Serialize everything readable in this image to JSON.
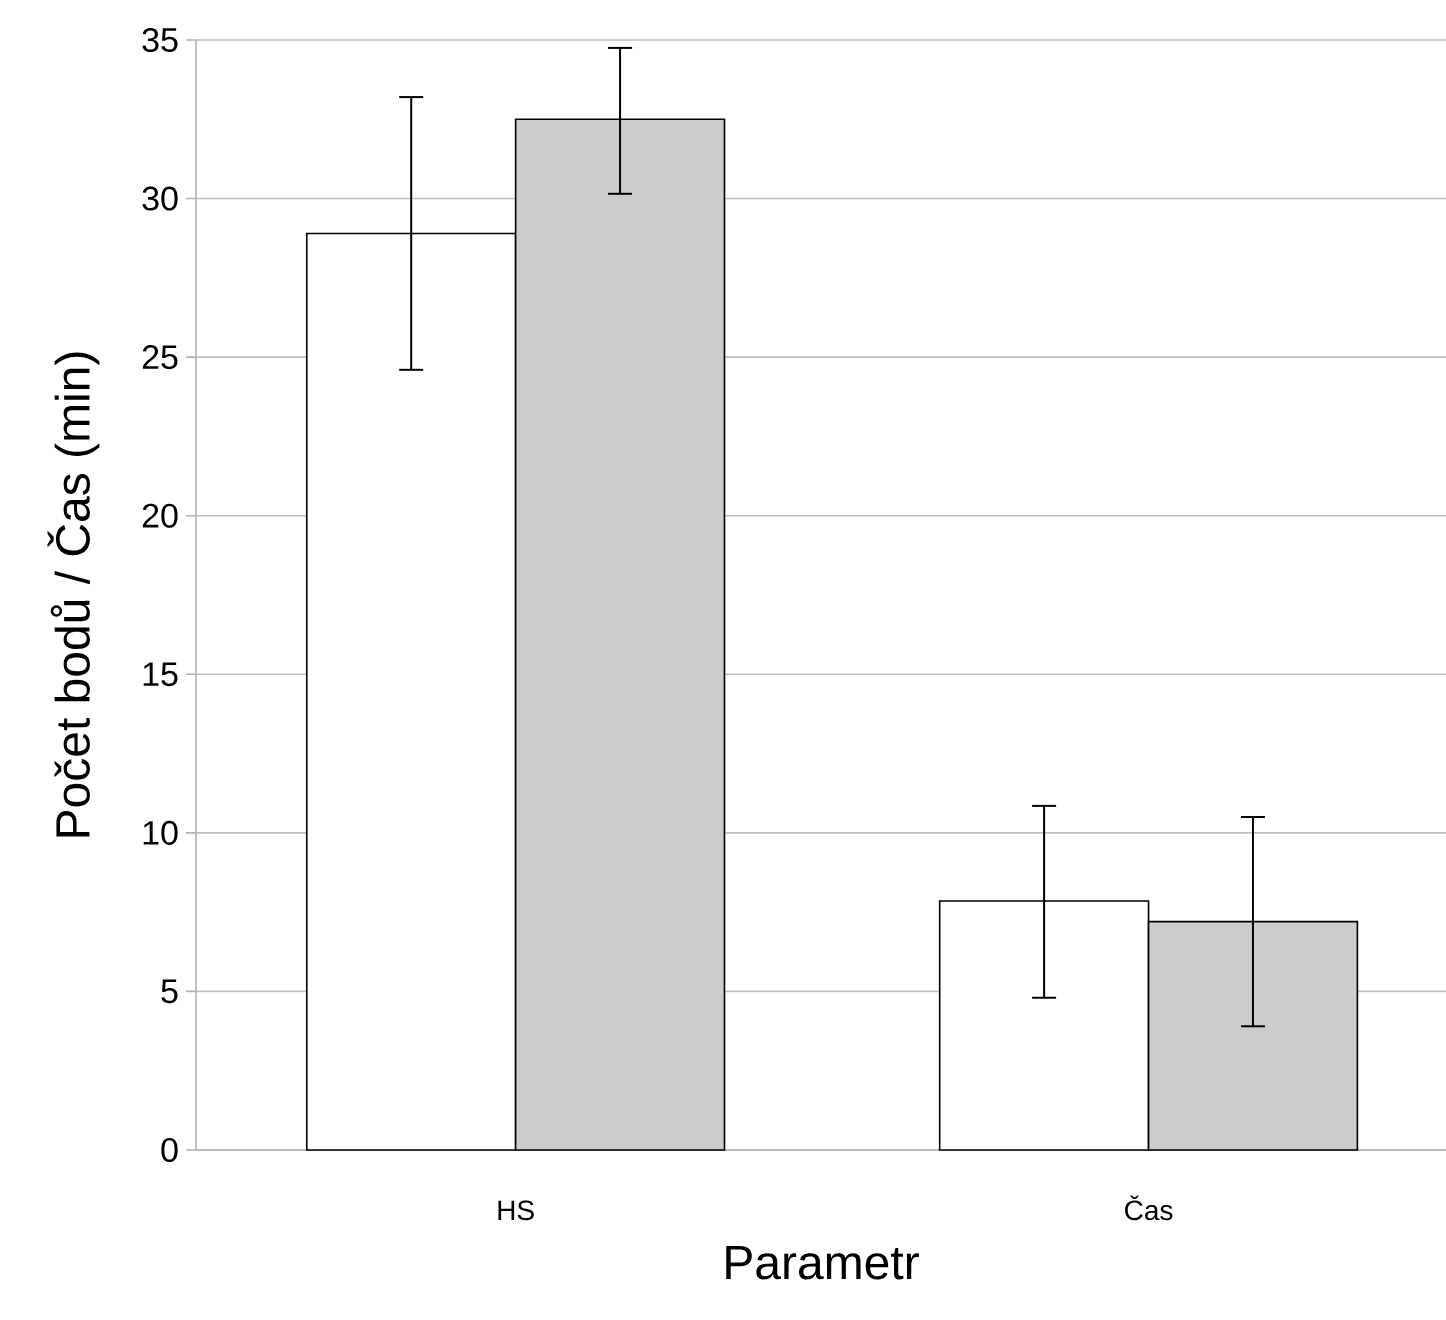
{
  "chart_data": {
    "type": "bar",
    "xlabel": "Parametr",
    "ylabel": "Počet bodů / Čas (min)",
    "categories": [
      "HS",
      "Čas"
    ],
    "series": [
      {
        "color": "#ffffff",
        "values": [
          28.9,
          7.85
        ],
        "errors": [
          [
            24.6,
            33.2
          ],
          [
            4.8,
            10.85
          ]
        ]
      },
      {
        "color": "#cccccc",
        "values": [
          32.5,
          7.2
        ],
        "errors": [
          [
            30.15,
            34.75
          ],
          [
            3.9,
            10.5
          ]
        ]
      }
    ],
    "ylim": [
      0,
      35
    ],
    "yticks": [
      0,
      5,
      10,
      15,
      20,
      25,
      30,
      35
    ],
    "grid": "y"
  }
}
